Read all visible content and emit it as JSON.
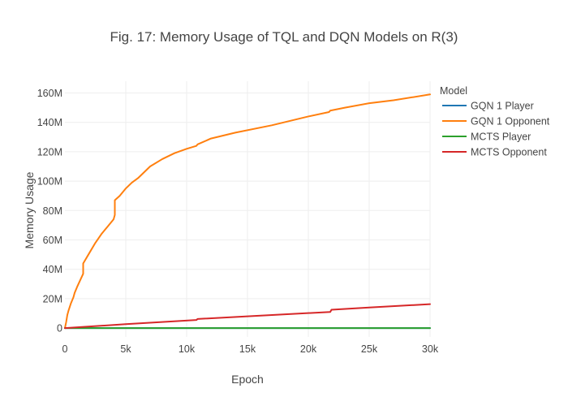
{
  "chart_data": {
    "type": "line",
    "title": "Fig. 17: Memory Usage of TQL and DQN Models on R(3)",
    "xlabel": "Epoch",
    "ylabel": "Memory Usage",
    "xlim": [
      0,
      30000
    ],
    "ylim": [
      -6000000,
      168000000
    ],
    "x_ticks": [
      0,
      5000,
      10000,
      15000,
      20000,
      25000,
      30000
    ],
    "x_tick_labels": [
      "0",
      "5k",
      "10k",
      "15k",
      "20k",
      "25k",
      "30k"
    ],
    "y_ticks": [
      0,
      20000000,
      40000000,
      60000000,
      80000000,
      100000000,
      120000000,
      140000000,
      160000000
    ],
    "y_tick_labels": [
      "0",
      "20M",
      "40M",
      "60M",
      "80M",
      "100M",
      "120M",
      "140M",
      "160M"
    ],
    "grid": true,
    "legend_title": "Model",
    "legend_position": "right",
    "series": [
      {
        "name": "GQN 1 Player",
        "color": "#1f77b4",
        "x": [
          0,
          300,
          700,
          1500,
          4100,
          30000
        ],
        "y": [
          0,
          0,
          0,
          0,
          0,
          0
        ]
      },
      {
        "name": "GQN 1 Opponent",
        "color": "#ff7f0e",
        "x": [
          0,
          100,
          200,
          300,
          500,
          700,
          800,
          1000,
          1500,
          1500,
          2000,
          2500,
          3000,
          3500,
          4000,
          4100,
          4100,
          4500,
          5000,
          5500,
          6000,
          7000,
          8000,
          9000,
          10000,
          10800,
          10900,
          12000,
          14000,
          17000,
          20000,
          21700,
          21800,
          23000,
          25000,
          27000,
          30000
        ],
        "y": [
          0,
          4000000,
          9000000,
          12000000,
          17000000,
          21000000,
          24000000,
          28000000,
          37000000,
          44000000,
          51000000,
          58000000,
          64000000,
          69000000,
          74000000,
          77000000,
          87000000,
          90000000,
          95000000,
          99000000,
          102000000,
          110000000,
          115000000,
          119000000,
          122000000,
          124000000,
          125000000,
          129000000,
          133000000,
          138000000,
          144000000,
          147000000,
          148000000,
          150000000,
          153000000,
          155000000,
          159000000
        ]
      },
      {
        "name": "MCTS Player",
        "color": "#2ca02c",
        "x": [
          0,
          30000
        ],
        "y": [
          0,
          0
        ]
      },
      {
        "name": "MCTS Opponent",
        "color": "#d62728",
        "x": [
          0,
          5000,
          10800,
          10900,
          15000,
          21800,
          21900,
          25000,
          30000
        ],
        "y": [
          0,
          2700000,
          5500000,
          6200000,
          8000000,
          11000000,
          12500000,
          14000000,
          16300000
        ]
      }
    ]
  }
}
